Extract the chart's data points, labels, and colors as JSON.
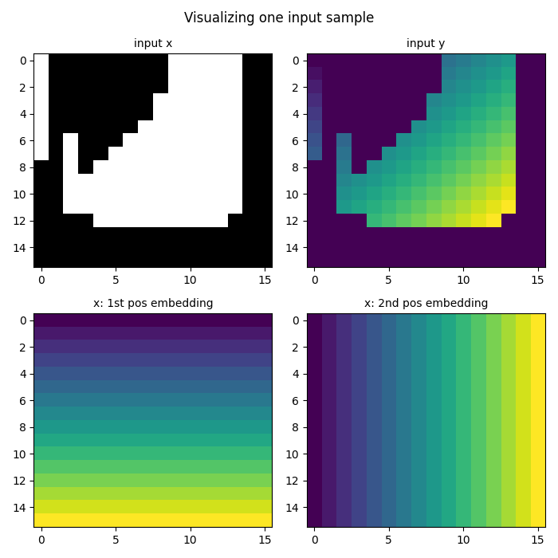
{
  "title": "Visualizing one input sample",
  "titles": [
    "input x",
    "input y",
    "x: 1st pos embedding",
    "x: 2nd pos embedding"
  ],
  "grid_size": 16,
  "input_x": [
    [
      1,
      0,
      0,
      0,
      0,
      0,
      0,
      0,
      0,
      1,
      1,
      1,
      1,
      1,
      0,
      0
    ],
    [
      1,
      0,
      0,
      0,
      0,
      0,
      0,
      0,
      0,
      1,
      1,
      1,
      1,
      1,
      0,
      0
    ],
    [
      1,
      0,
      0,
      0,
      0,
      0,
      0,
      0,
      0,
      1,
      1,
      1,
      1,
      1,
      0,
      0
    ],
    [
      1,
      0,
      0,
      0,
      0,
      0,
      0,
      0,
      1,
      1,
      1,
      1,
      1,
      1,
      0,
      0
    ],
    [
      1,
      0,
      0,
      0,
      0,
      0,
      0,
      0,
      1,
      1,
      1,
      1,
      1,
      1,
      0,
      0
    ],
    [
      1,
      0,
      0,
      0,
      0,
      0,
      0,
      1,
      1,
      1,
      1,
      1,
      1,
      1,
      0,
      0
    ],
    [
      1,
      0,
      1,
      0,
      0,
      0,
      1,
      1,
      1,
      1,
      1,
      1,
      1,
      1,
      0,
      0
    ],
    [
      1,
      0,
      1,
      0,
      0,
      1,
      1,
      1,
      1,
      1,
      1,
      1,
      1,
      1,
      0,
      0
    ],
    [
      0,
      0,
      1,
      0,
      1,
      1,
      1,
      1,
      1,
      1,
      1,
      1,
      1,
      1,
      0,
      0
    ],
    [
      0,
      0,
      1,
      1,
      1,
      1,
      1,
      1,
      1,
      1,
      1,
      1,
      1,
      1,
      0,
      0
    ],
    [
      0,
      0,
      1,
      1,
      1,
      1,
      1,
      1,
      1,
      1,
      1,
      1,
      1,
      1,
      0,
      0
    ],
    [
      0,
      0,
      1,
      1,
      1,
      1,
      1,
      1,
      1,
      1,
      1,
      1,
      1,
      1,
      0,
      0
    ],
    [
      0,
      0,
      0,
      0,
      1,
      1,
      1,
      1,
      1,
      1,
      1,
      1,
      1,
      0,
      0,
      0
    ],
    [
      0,
      0,
      0,
      0,
      0,
      0,
      0,
      0,
      0,
      0,
      0,
      0,
      0,
      0,
      0,
      0
    ],
    [
      0,
      0,
      0,
      0,
      0,
      0,
      0,
      0,
      0,
      0,
      0,
      0,
      0,
      0,
      0,
      0
    ],
    [
      0,
      0,
      0,
      0,
      0,
      0,
      0,
      0,
      0,
      0,
      0,
      0,
      0,
      0,
      0,
      0
    ]
  ],
  "cmap_input_x": "gray",
  "cmap_input_y": "viridis",
  "cmap_pos": "viridis",
  "title_fontsize": 12,
  "subplot_title_fontsize": 10
}
